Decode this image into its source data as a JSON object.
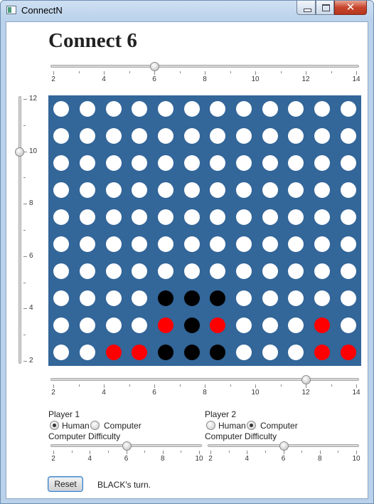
{
  "window": {
    "title": "ConnectN"
  },
  "game": {
    "title": "Connect 6",
    "status": "BLACK's turn.",
    "reset_label": "Reset"
  },
  "connect_slider": {
    "min": 2,
    "max": 14,
    "value": 6,
    "labels": [
      "2",
      "4",
      "6",
      "8",
      "10",
      "12",
      "14"
    ]
  },
  "rows_slider": {
    "min": 2,
    "max": 12,
    "value": 10,
    "labels": [
      "12",
      "10",
      "8",
      "6",
      "4",
      "2"
    ]
  },
  "columns_slider": {
    "min": 2,
    "max": 14,
    "value": 12,
    "labels": [
      "2",
      "4",
      "6",
      "8",
      "10",
      "12",
      "14"
    ]
  },
  "board": {
    "rows": 10,
    "columns": 12,
    "pieces": [
      {
        "row": 7,
        "col": 4,
        "color": "black"
      },
      {
        "row": 7,
        "col": 5,
        "color": "black"
      },
      {
        "row": 7,
        "col": 6,
        "color": "black"
      },
      {
        "row": 8,
        "col": 4,
        "color": "red"
      },
      {
        "row": 8,
        "col": 5,
        "color": "black"
      },
      {
        "row": 8,
        "col": 6,
        "color": "red"
      },
      {
        "row": 8,
        "col": 10,
        "color": "red"
      },
      {
        "row": 9,
        "col": 2,
        "color": "red"
      },
      {
        "row": 9,
        "col": 3,
        "color": "red"
      },
      {
        "row": 9,
        "col": 4,
        "color": "black"
      },
      {
        "row": 9,
        "col": 5,
        "color": "black"
      },
      {
        "row": 9,
        "col": 6,
        "color": "black"
      },
      {
        "row": 9,
        "col": 10,
        "color": "red"
      },
      {
        "row": 9,
        "col": 11,
        "color": "red"
      }
    ],
    "colors": {
      "board": "#336699",
      "empty": "#ffffff",
      "red": "#ff0000",
      "black": "#000000"
    }
  },
  "player1": {
    "label": "Player 1",
    "human_label": "Human",
    "computer_label": "Computer",
    "selected": "human",
    "difficulty_label": "Computer Difficulty",
    "difficulty": {
      "min": 2,
      "max": 10,
      "value": 6,
      "labels": [
        "2",
        "4",
        "6",
        "8",
        "10"
      ]
    }
  },
  "player2": {
    "label": "Player 2",
    "human_label": "Human",
    "computer_label": "Computer",
    "selected": "computer",
    "difficulty_label": "Computer Difficulty",
    "difficulty": {
      "min": 2,
      "max": 10,
      "value": 6,
      "labels": [
        "2",
        "4",
        "6",
        "8",
        "10"
      ]
    }
  }
}
